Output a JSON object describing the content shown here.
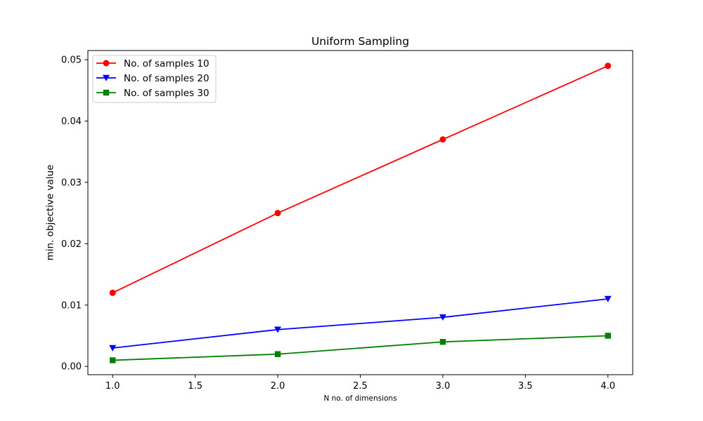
{
  "chart_data": {
    "type": "line",
    "title": "Uniform Sampling",
    "xlabel": "N no. of dimensions",
    "ylabel": "min. objective value",
    "x": [
      1,
      2,
      3,
      4
    ],
    "xlim": [
      0.85,
      4.15
    ],
    "ylim": [
      -0.00135,
      0.0515
    ],
    "xticks": [
      1.0,
      1.5,
      2.0,
      2.5,
      3.0,
      3.5,
      4.0
    ],
    "xtick_labels": [
      "1.0",
      "1.5",
      "2.0",
      "2.5",
      "3.0",
      "3.5",
      "4.0"
    ],
    "yticks": [
      0.0,
      0.01,
      0.02,
      0.03,
      0.04,
      0.05
    ],
    "ytick_labels": [
      "0.00",
      "0.01",
      "0.02",
      "0.03",
      "0.04",
      "0.05"
    ],
    "grid": false,
    "legend_position": "upper-left",
    "series": [
      {
        "name": "No. of samples 10",
        "values": [
          0.012,
          0.025,
          0.037,
          0.049
        ],
        "color": "#ff0000",
        "marker": "circle"
      },
      {
        "name": "No. of samples 20",
        "values": [
          0.003,
          0.006,
          0.008,
          0.011
        ],
        "color": "#0000ff",
        "marker": "triangle-down"
      },
      {
        "name": "No. of samples 30",
        "values": [
          0.001,
          0.002,
          0.004,
          0.005
        ],
        "color": "#008000",
        "marker": "square"
      }
    ]
  }
}
